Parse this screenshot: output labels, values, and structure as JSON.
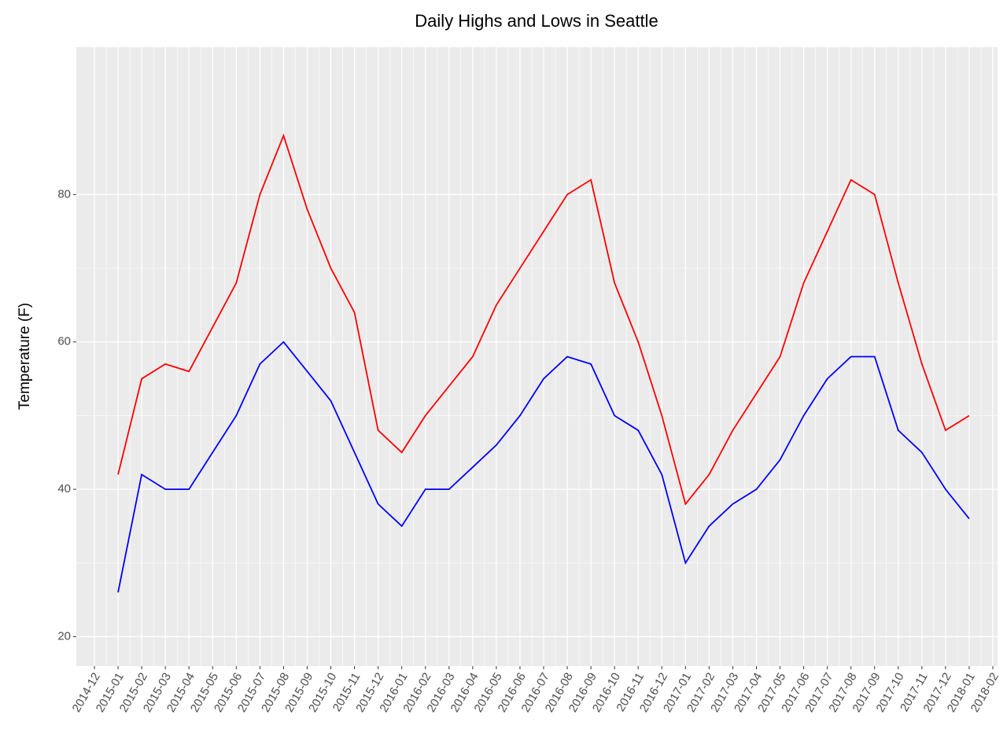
{
  "chart_data": {
    "type": "line",
    "title": "Daily Highs and Lows in Seattle",
    "y_label": "Temperature (F)",
    "x": [
      "2015-01",
      "2015-02",
      "2015-03",
      "2015-04",
      "2015-05",
      "2015-06",
      "2015-07",
      "2015-08",
      "2015-09",
      "2015-10",
      "2015-11",
      "2015-12",
      "2016-01",
      "2016-02",
      "2016-03",
      "2016-04",
      "2016-05",
      "2016-06",
      "2016-07",
      "2016-08",
      "2016-09",
      "2016-10",
      "2016-11",
      "2016-12",
      "2017-01",
      "2017-02",
      "2017-03",
      "2017-04",
      "2017-05",
      "2017-06",
      "2017-07",
      "2017-08",
      "2017-09",
      "2017-10",
      "2017-11",
      "2017-12",
      "2018-01"
    ],
    "series": [
      {
        "color": "#ff0000",
        "values": [
          42,
          55,
          57,
          56,
          62,
          68,
          80,
          88,
          78,
          70,
          64,
          48,
          45,
          50,
          54,
          58,
          65,
          70,
          75,
          80,
          82,
          68,
          60,
          50,
          38,
          42,
          48,
          53,
          58,
          68,
          75,
          82,
          80,
          68,
          57,
          48,
          50
        ]
      },
      {
        "color": "#0000ff",
        "values": [
          26,
          42,
          40,
          40,
          45,
          50,
          57,
          60,
          56,
          52,
          45,
          38,
          35,
          40,
          40,
          43,
          46,
          50,
          55,
          58,
          57,
          50,
          48,
          42,
          30,
          35,
          38,
          40,
          44,
          50,
          55,
          58,
          58,
          48,
          45,
          40,
          36
        ]
      }
    ],
    "xlim": [
      "2014-12",
      "2018-02"
    ],
    "xticks": [
      "2014-12",
      "2015-01",
      "2015-02",
      "2015-03",
      "2015-04",
      "2015-05",
      "2015-06",
      "2015-07",
      "2015-08",
      "2015-09",
      "2015-10",
      "2015-11",
      "2015-12",
      "2016-01",
      "2016-02",
      "2016-03",
      "2016-04",
      "2016-05",
      "2016-06",
      "2016-07",
      "2016-08",
      "2016-09",
      "2016-10",
      "2016-11",
      "2016-12",
      "2017-01",
      "2017-02",
      "2017-03",
      "2017-04",
      "2017-05",
      "2017-06",
      "2017-07",
      "2017-08",
      "2017-09",
      "2017-10",
      "2017-11",
      "2017-12",
      "2018-01",
      "2018-02"
    ],
    "ylim": [
      16,
      100
    ],
    "yticks": [
      20,
      40,
      60,
      80
    ],
    "grid": true
  }
}
